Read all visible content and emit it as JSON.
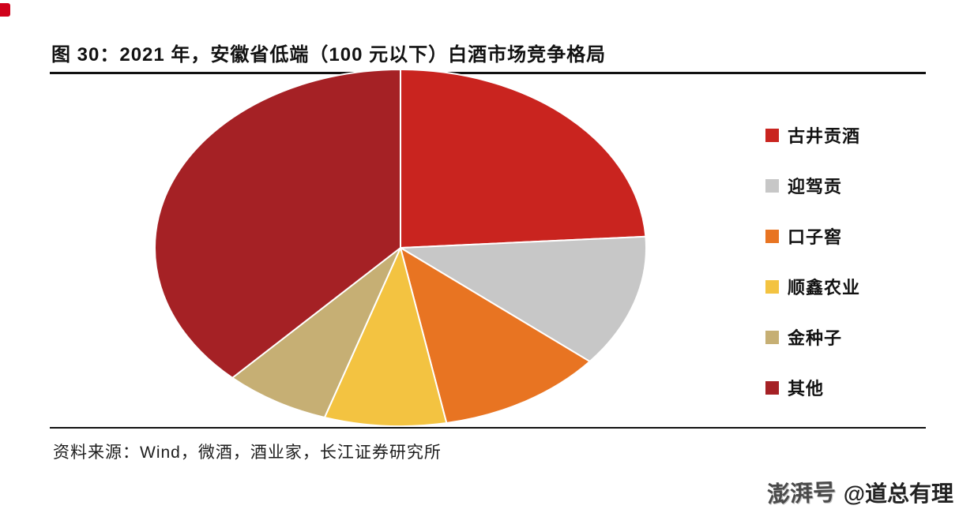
{
  "figure": {
    "title": "图 30：2021 年，安徽省低端（100 元以下）白酒市场竞争格局",
    "source": "资料来源：Wind，微酒，酒业家，长江证券研究所"
  },
  "watermark": {
    "brand": "澎湃号",
    "handle": "@道总有理"
  },
  "chart_data": {
    "type": "pie",
    "title": "2021 年，安徽省低端（100 元以下）白酒市场竞争格局",
    "unit": "percent share (estimated from slice angles; no data labels shown)",
    "legend_position": "right",
    "start_angle": "12 o'clock",
    "direction": "clockwise",
    "slices": [
      {
        "label": "古井贡酒",
        "value": 24,
        "color": "#c9241f"
      },
      {
        "label": "迎驾贡",
        "value": 12,
        "color": "#c7c7c7"
      },
      {
        "label": "口子窖",
        "value": 11,
        "color": "#e87422"
      },
      {
        "label": "顺鑫农业",
        "value": 8,
        "color": "#f3c341"
      },
      {
        "label": "金种子",
        "value": 7,
        "color": "#c6af74"
      },
      {
        "label": "其他",
        "value": 38,
        "color": "#a52125"
      }
    ]
  }
}
